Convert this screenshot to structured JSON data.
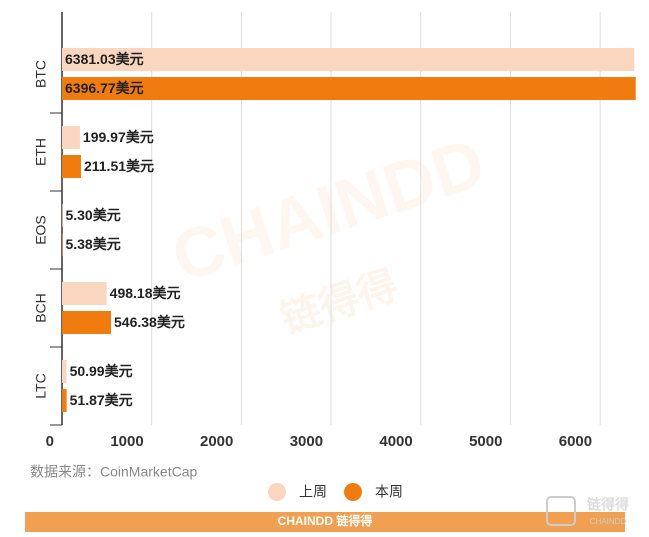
{
  "chart_data": {
    "type": "bar",
    "orientation": "horizontal",
    "categories": [
      "BTC",
      "ETH",
      "EOS",
      "BCH",
      "LTC"
    ],
    "series": [
      {
        "name": "上周",
        "color": "#fad6bf",
        "values": [
          6381.03,
          199.97,
          5.3,
          498.18,
          50.99
        ],
        "value_labels": [
          "6381.03美元",
          "199.97美元",
          "5.30美元",
          "498.18美元",
          "50.99美元"
        ]
      },
      {
        "name": "本周",
        "color": "#f07c10",
        "values": [
          6396.77,
          211.51,
          5.38,
          546.38,
          51.87
        ],
        "value_labels": [
          "6396.77美元",
          "211.51美元",
          "5.38美元",
          "546.38美元",
          "51.87美元"
        ]
      }
    ],
    "xlim": [
      0,
      6400
    ],
    "xticks": [
      0,
      1000,
      2000,
      3000,
      4000,
      5000,
      6000
    ],
    "grid": true,
    "legend": "bottom",
    "source": "数据来源：CoinMarketCap",
    "watermark": "CHAINDD",
    "watermark_cn": "链得得",
    "footer": "CHAINDD 链得得",
    "logo": "链得得",
    "logo_sub": "CHAINDD"
  }
}
